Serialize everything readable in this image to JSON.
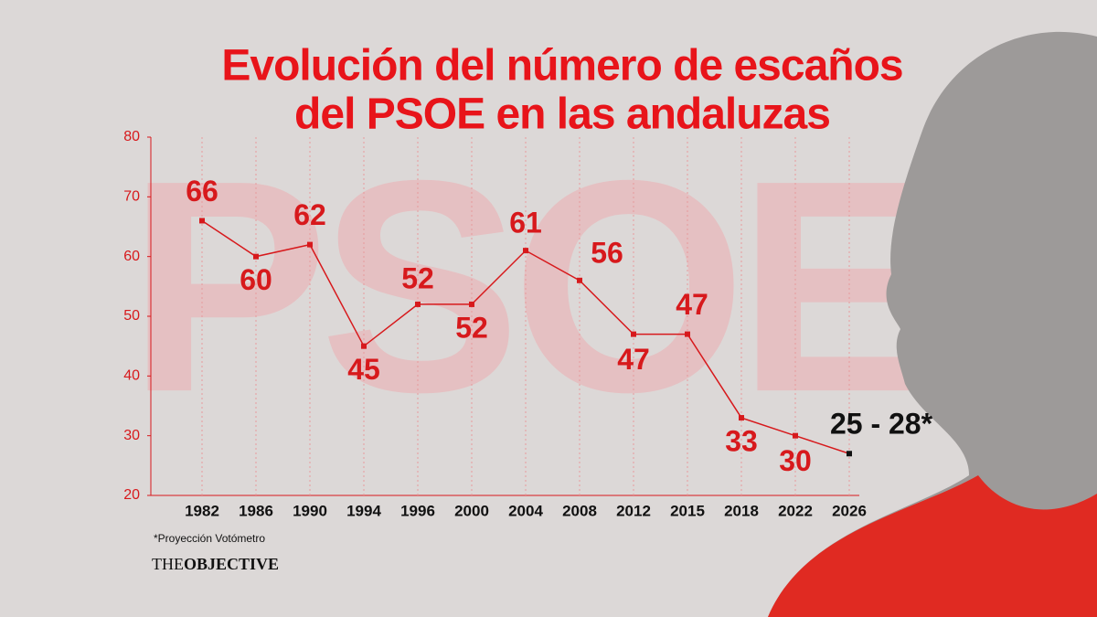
{
  "chart_data": {
    "type": "line",
    "title": [
      "Evolución del número de escaños",
      "del PSOE en las andaluzas"
    ],
    "watermark": "PSOE",
    "categories": [
      "1982",
      "1986",
      "1990",
      "1994",
      "1996",
      "2000",
      "2004",
      "2008",
      "2012",
      "2015",
      "2018",
      "2022",
      "2026"
    ],
    "series": [
      {
        "name": "PSOE",
        "color": "#d7191c",
        "values": [
          66,
          60,
          62,
          45,
          52,
          52,
          61,
          56,
          47,
          47,
          33,
          30,
          27
        ],
        "value_labels": [
          "66",
          "60",
          "62",
          "45",
          "52",
          "52",
          "61",
          "56",
          "47",
          "47",
          "33",
          "30",
          "25 - 28*"
        ]
      }
    ],
    "projection_color": "#111111",
    "ylim": [
      20,
      80
    ],
    "yticks": [
      20,
      30,
      40,
      50,
      60,
      70,
      80
    ],
    "grid": true,
    "footnote": "*Proyección Votómetro",
    "brand": [
      "THE",
      "OBJECTIVE"
    ]
  }
}
